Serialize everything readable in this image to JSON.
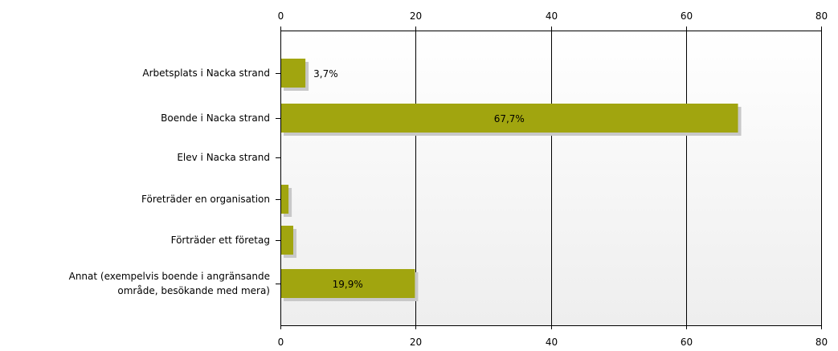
{
  "chart_data": {
    "type": "bar",
    "orientation": "horizontal",
    "categories": [
      [
        "Arbetsplats i Nacka strand"
      ],
      [
        "Boende i Nacka strand"
      ],
      [
        "Elev i Nacka strand"
      ],
      [
        "Företräder en organisation"
      ],
      [
        "Förträder ett företag"
      ],
      [
        "Annat (exempelvis boende i angränsande",
        "område, besökande med mera)"
      ]
    ],
    "values": [
      3.7,
      67.7,
      0,
      1.2,
      1.9,
      19.9
    ],
    "data_labels": [
      "3,7%",
      "67,7%",
      "",
      "",
      "",
      "19,9%"
    ],
    "xlim": [
      0,
      80
    ],
    "x_ticks": [
      0,
      20,
      40,
      60,
      80
    ],
    "x_axis_top": true,
    "x_axis_bottom": true,
    "grid": "vertical",
    "bar_color": "#a1a50f",
    "title": "",
    "xlabel": "",
    "ylabel": ""
  }
}
